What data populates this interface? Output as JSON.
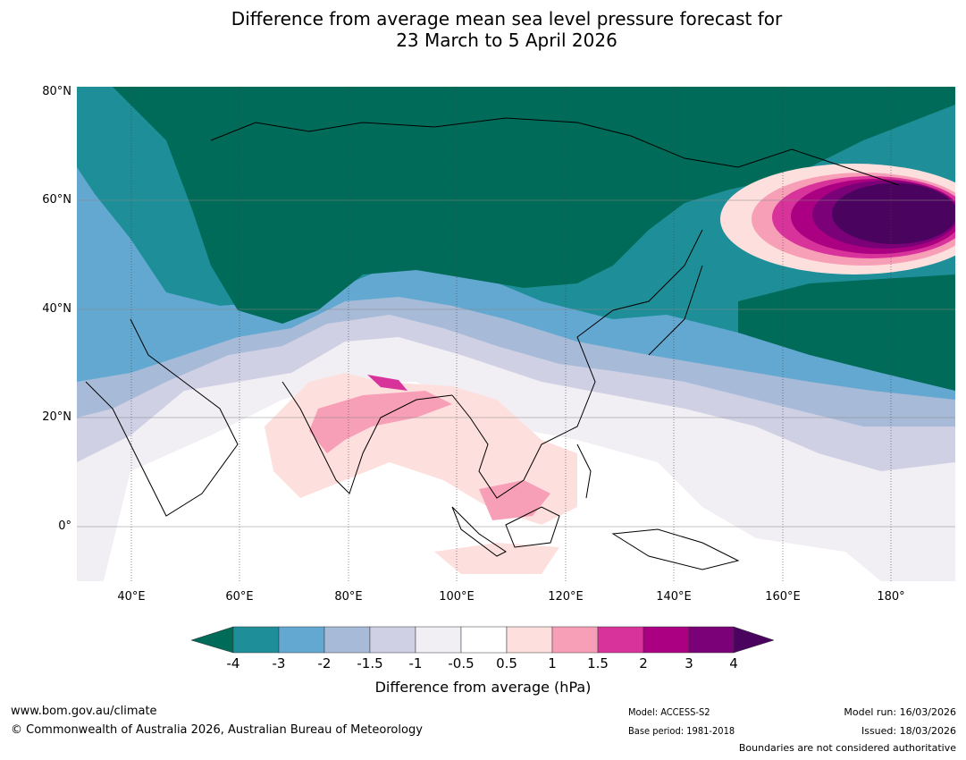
{
  "title": {
    "line1": "Difference from average mean sea level pressure forecast for",
    "line2": "23 March to 5 April 2026"
  },
  "map": {
    "lat_labels": [
      "80°N",
      "60°N",
      "40°N",
      "20°N",
      "0°"
    ],
    "lon_labels": [
      "40°E",
      "60°E",
      "80°E",
      "100°E",
      "120°E",
      "140°E",
      "160°E",
      "180°"
    ],
    "extent": {
      "lon_min": 30,
      "lon_max": 192,
      "lat_min": -10,
      "lat_max": 81
    }
  },
  "colorbar": {
    "ticks": [
      "-4",
      "-3",
      "-2",
      "-1.5",
      "-1",
      "-0.5",
      "0.5",
      "1",
      "1.5",
      "2",
      "3",
      "4"
    ],
    "colors": {
      "under": "#006b58",
      "bins": [
        "#1e8f98",
        "#63a8d0",
        "#a7bbd8",
        "#cfd0e4",
        "#f1eef4",
        "#ffffff",
        "#fde0dd",
        "#f89fb8",
        "#d8339a",
        "#ab0082",
        "#7a0177"
      ],
      "over": "#4a045f"
    },
    "label": "Difference from average (hPa)"
  },
  "footer": {
    "website": "www.bom.gov.au/climate",
    "copyright": "© Commonwealth of Australia 2026, Australian Bureau of Meteorology",
    "model": "Model: ACCESS-S2",
    "base_period": "Base period: 1981-2018",
    "model_run": "Model run: 16/03/2026",
    "issued": "Issued: 18/03/2026",
    "disclaimer": "Boundaries are not considered authoritative"
  }
}
